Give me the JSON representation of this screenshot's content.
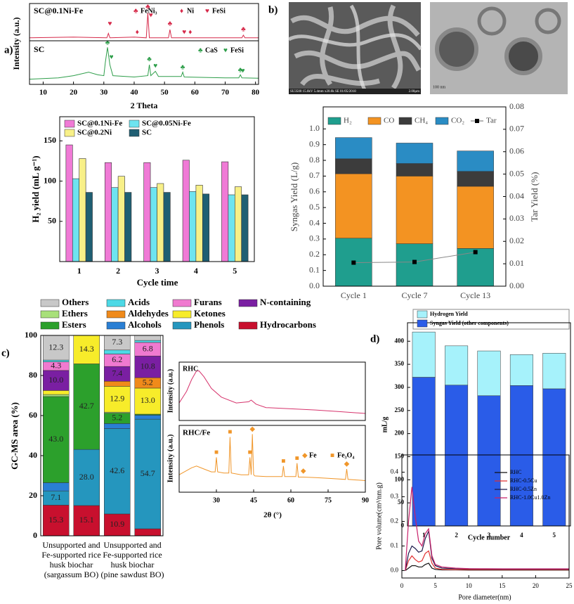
{
  "panel_labels": [
    "a)",
    "b)",
    "c)",
    "d)"
  ],
  "images": [
    {
      "caption": "SU3500 15.0kV 5.4mm x20.0k SE 01/05/2018",
      "scale": "2.00μm"
    },
    {
      "scale": "100 nm"
    }
  ],
  "chart_data": [
    {
      "type": "line",
      "title": "SC@0.1Ni-Fe",
      "ylabel": "Intensity (a.u.)",
      "xlim": [
        5.5,
        81
      ],
      "ylim": [
        0,
        1
      ],
      "x": [
        5.5,
        20,
        31,
        31.5,
        32,
        40,
        44,
        44.5,
        45,
        51.3,
        51.8,
        52.3,
        75.5,
        76,
        76.5,
        81
      ],
      "series": [
        {
          "color": "#d62a4a",
          "values": [
            0.08,
            0.1,
            0.08,
            0.2,
            0.08,
            0.1,
            0.08,
            0.75,
            0.08,
            0.08,
            0.3,
            0.08,
            0.08,
            0.15,
            0.08,
            0.08
          ]
        }
      ],
      "markers": [
        {
          "name": "FeNi₃",
          "symbol": "♣",
          "color": "#d62a4a",
          "x": [
            44.5,
            51.8,
            76
          ],
          "y": [
            0.9,
            0.45,
            0.3
          ]
        },
        {
          "name": "Ni",
          "symbol": "♦",
          "color": "#d62a4a",
          "x": [
            41,
            58.5
          ],
          "y": [
            0.22,
            0.22
          ]
        },
        {
          "name": "FeSi",
          "symbol": "♥",
          "color": "#d62a4a",
          "x": [
            32,
            45.5,
            56.5
          ],
          "y": [
            0.45,
            0.68,
            0.22
          ]
        }
      ]
    },
    {
      "type": "line",
      "title": "SC",
      "xlabel": "2 Theta",
      "xlim": [
        5.5,
        81
      ],
      "xticks": [
        10,
        20,
        30,
        40,
        50,
        60,
        70,
        80
      ],
      "ylim": [
        0,
        1
      ],
      "x": [
        5.5,
        15,
        20,
        25,
        28,
        30,
        30.5,
        31.2,
        32,
        33,
        40,
        44.5,
        45,
        45.5,
        47,
        48,
        55.5,
        56,
        56.5,
        70,
        74.5,
        75,
        75.5,
        81
      ],
      "series": [
        {
          "color": "#2e9e4a",
          "values": [
            0.12,
            0.15,
            0.2,
            0.28,
            0.22,
            0.2,
            0.5,
            0.85,
            0.45,
            0.2,
            0.17,
            0.2,
            0.45,
            0.2,
            0.3,
            0.18,
            0.18,
            0.28,
            0.17,
            0.15,
            0.15,
            0.22,
            0.15,
            0.14
          ]
        }
      ],
      "markers": [
        {
          "name": "CaS",
          "symbol": "♣",
          "color": "#2e9e4a",
          "x": [
            31.2,
            45,
            56,
            75
          ],
          "y": [
            0.95,
            0.57,
            0.38,
            0.32
          ]
        },
        {
          "name": "FeSi",
          "symbol": "♥",
          "color": "#2e9e4a",
          "x": [
            32.5,
            47,
            75.8
          ],
          "y": [
            0.62,
            0.42,
            0.3
          ]
        }
      ]
    },
    {
      "type": "bar",
      "xlabel": "Cycle time",
      "ylabel": "H₂ yield (mL g⁻¹)",
      "categories": [
        "1",
        "2",
        "3",
        "4",
        "5"
      ],
      "ylim": [
        0,
        180
      ],
      "yticks": [
        50,
        100,
        150
      ],
      "series": [
        {
          "name": "SC@0.1Ni-Fe",
          "color": "#f07ad6",
          "values": [
            145,
            123,
            123,
            126,
            124
          ]
        },
        {
          "name": "SC@0.05Ni-Fe",
          "color": "#6ee4f0",
          "values": [
            103,
            92,
            92,
            87,
            83
          ]
        },
        {
          "name": "SC@0.2Ni",
          "color": "#f8f088",
          "values": [
            128,
            106,
            97,
            95,
            93
          ]
        },
        {
          "name": "SC",
          "color": "#1f5f73",
          "values": [
            86,
            86,
            86,
            84,
            83
          ]
        }
      ]
    },
    {
      "type": "stacked_bar",
      "ylabel": "Syngas Yield (L/g)",
      "y2label": "Tar Yield (%)",
      "categories": [
        "Cycle 1",
        "Cycle 7",
        "Cycle 13"
      ],
      "ylim": [
        0,
        1.14
      ],
      "yticks": [
        {
          "value": 0,
          "label": "0.0"
        },
        0.1,
        0.2,
        0.3,
        0.4,
        0.5,
        0.6,
        0.7,
        0.8,
        0.9,
        {
          "value": 1,
          "label": "1.0"
        }
      ],
      "y2lim": [
        0,
        0.08
      ],
      "y2ticks": [
        {
          "value": 0,
          "label": "0.00"
        },
        {
          "value": 0.01,
          "label": "0.01"
        },
        {
          "value": 0.02,
          "label": "0.02"
        },
        {
          "value": 0.03,
          "label": "0.03"
        },
        {
          "value": 0.04,
          "label": "0.04"
        },
        {
          "value": 0.05,
          "label": "0.05"
        },
        {
          "value": 0.06,
          "label": "0.06"
        },
        {
          "value": 0.07,
          "label": "0.07"
        },
        {
          "value": 0.08,
          "label": "0.08"
        }
      ],
      "series": [
        {
          "name": "H₂",
          "color": "#1f9e8e",
          "values": [
            0.305,
            0.27,
            0.24
          ]
        },
        {
          "name": "CO",
          "color": "#f39322",
          "values": [
            0.41,
            0.43,
            0.395
          ]
        },
        {
          "name": "CH₄",
          "color": "#3c3c3c",
          "values": [
            0.095,
            0.08,
            0.095
          ]
        },
        {
          "name": "CO₂",
          "color": "#2a8cc4",
          "values": [
            0.135,
            0.13,
            0.13
          ]
        },
        {
          "name": "Tar",
          "color": "#000000",
          "axis": "y2",
          "values": [
            0.0105,
            0.0108,
            0.0152
          ]
        }
      ]
    },
    {
      "type": "stacked_bar",
      "ylabel": "GC-MS area (%)",
      "categories": [
        null,
        null,
        null,
        null
      ],
      "category_groups": [
        [
          "Unsupported and",
          "Fe-supported rice",
          "husk biochar",
          "(sargassum BO)"
        ],
        [
          "Unsupported and",
          "Fe-supported rice",
          "husk biochar",
          "(pine sawdust BO)"
        ]
      ],
      "ylim": [
        0,
        100
      ],
      "yticks": [
        0,
        20,
        40,
        60,
        80,
        100
      ],
      "series": [
        {
          "name": "Hydrocarbons",
          "color": "#c8102e",
          "values": [
            15.3,
            15.1,
            10.9,
            3.5
          ],
          "value_labels": [
            "15.3",
            "15.1",
            "10.9",
            null
          ]
        },
        {
          "name": "Phenols",
          "color": "#2596be",
          "values": [
            7.1,
            28.0,
            42.6,
            54.7
          ],
          "value_labels": [
            "7.1",
            "28.0",
            "42.6",
            "54.7"
          ]
        },
        {
          "name": "Alcohols",
          "color": "#2a7fd4",
          "values": [
            4.1,
            0,
            2.5,
            2
          ]
        },
        {
          "name": "Esters",
          "color": "#2ca02c",
          "values": [
            43.0,
            42.7,
            5.2,
            0.5
          ],
          "value_labels": [
            "43.0",
            "42.7",
            "5.2",
            null
          ]
        },
        {
          "name": "Ethers",
          "color": "#a8e07a",
          "values": [
            1.0,
            0,
            0.5,
            0
          ]
        },
        {
          "name": "Ketones",
          "color": "#f7ec2a",
          "values": [
            2.0,
            14.3,
            12.9,
            13.0
          ],
          "value_labels": [
            null,
            "14.3",
            "12.9",
            "13.0"
          ]
        },
        {
          "name": "Aldehydes",
          "color": "#f08a1a",
          "values": [
            0,
            0,
            2.5,
            5.2
          ],
          "value_labels": [
            null,
            null,
            null,
            "5.2"
          ]
        },
        {
          "name": "N-containing",
          "color": "#7a1fa2",
          "values": [
            10.0,
            0,
            7.4,
            10.8
          ],
          "value_labels": [
            "10.0",
            null,
            "7.4",
            "10.8"
          ]
        },
        {
          "name": "Furans",
          "color": "#f07ad0",
          "values": [
            4.3,
            0,
            6.2,
            6.8
          ],
          "value_labels": [
            "4.3",
            null,
            "6.2",
            "6.8"
          ]
        },
        {
          "name": "Acids",
          "color": "#4dd9e6",
          "values": [
            0.9,
            0,
            2.0,
            1.0
          ]
        },
        {
          "name": "Others",
          "color": "#c8c8c8",
          "values": [
            12.3,
            0,
            7.3,
            2.5
          ],
          "value_labels": [
            "12.3",
            null,
            "7.3",
            null
          ]
        }
      ]
    },
    {
      "type": "line",
      "title": "RHC",
      "ylabel": "Intensity (a.u.)",
      "xlim": [
        15,
        90
      ],
      "ylim": [
        0,
        1
      ],
      "x": [
        15,
        18,
        20,
        22,
        23,
        25,
        28,
        32,
        38,
        43,
        44,
        46,
        50,
        60,
        70,
        80,
        90
      ],
      "series": [
        {
          "color": "#d6336c",
          "values": [
            0.3,
            0.5,
            0.7,
            0.85,
            0.85,
            0.75,
            0.55,
            0.4,
            0.3,
            0.32,
            0.35,
            0.28,
            0.22,
            0.2,
            0.18,
            0.15,
            0.12
          ]
        }
      ]
    },
    {
      "type": "line",
      "title": "RHC/Fe",
      "ylabel": "Intensity (a.u.)",
      "xlabel": "2θ (°)",
      "xlim": [
        15,
        90
      ],
      "xticks": [
        30,
        45,
        60,
        75,
        90
      ],
      "ylim": [
        0,
        1.15
      ],
      "x": [
        15,
        20,
        22,
        25,
        28,
        29.5,
        30,
        30.5,
        33,
        35,
        35.5,
        36,
        40,
        43,
        43.5,
        44,
        44.5,
        45,
        45.5,
        50,
        56.5,
        57,
        57.5,
        62,
        62.5,
        63,
        65,
        70,
        75,
        82,
        82.5,
        83,
        90
      ],
      "series": [
        {
          "color": "#f0962a",
          "values": [
            0.3,
            0.42,
            0.45,
            0.4,
            0.35,
            0.35,
            0.6,
            0.35,
            0.33,
            0.33,
            0.95,
            0.33,
            0.3,
            0.3,
            0.6,
            0.3,
            1.0,
            0.3,
            0.28,
            0.27,
            0.27,
            0.45,
            0.27,
            0.27,
            0.5,
            0.26,
            0.26,
            0.25,
            0.24,
            0.22,
            0.4,
            0.22,
            0.2
          ]
        }
      ],
      "markers": [
        {
          "name": "Fe",
          "symbol": "◆",
          "color": "#f0962a",
          "x": [
            44.5,
            65,
            82.5
          ],
          "y": [
            1.08,
            0.36,
            0.48
          ]
        },
        {
          "name": "Fe₃O₄",
          "symbol": "■",
          "color": "#f0962a",
          "x": [
            30,
            35.5,
            43.5,
            57,
            62.5
          ],
          "y": [
            0.68,
            1.03,
            0.68,
            0.53,
            0.58
          ]
        }
      ]
    },
    {
      "type": "stacked_bar",
      "xlabel": "Cycle number",
      "ylabel": "mL/g",
      "categories": [
        "1",
        "2",
        "3",
        "4",
        "5"
      ],
      "ylim": [
        0,
        440
      ],
      "yticks": [
        0,
        50,
        100,
        150,
        200,
        250,
        300,
        350,
        400
      ],
      "series": [
        {
          "name": "Syngas Yield (other components)",
          "color": "#2a5ce8",
          "values": [
            322,
            305,
            282,
            304,
            297
          ]
        },
        {
          "name": "Hydrogen Yield",
          "color": "#a6f2fb",
          "values": [
            98,
            85,
            97,
            67,
            77
          ]
        }
      ]
    },
    {
      "type": "line",
      "xlabel": "Pore diameter(nm)",
      "ylabel": "Pore volume(cm³/nm.g)",
      "xlim": [
        0,
        25
      ],
      "xticks": [
        0,
        5,
        10,
        15,
        20,
        25
      ],
      "ylim": [
        -0.03,
        0.47
      ],
      "yticks": [
        {
          "value": 0,
          "label": "0.0"
        },
        0.1,
        0.2,
        0.3,
        0.4
      ],
      "x": [
        0.5,
        1,
        1.5,
        2,
        2.5,
        3,
        3.5,
        4,
        4.5,
        5,
        6,
        8,
        10,
        15,
        20,
        25
      ],
      "series": [
        {
          "name": "RHC",
          "color": "#111111",
          "values": [
            0,
            0.01,
            0.02,
            0.02,
            0.015,
            0.015,
            0.025,
            0.03,
            0.01,
            0.005,
            0.003,
            0.003,
            0.002,
            0.002,
            0.002,
            0.002
          ]
        },
        {
          "name": "RHC-0.5Cu",
          "color": "#e03030",
          "values": [
            0,
            0.04,
            0.06,
            0.045,
            0.035,
            0.04,
            0.07,
            0.08,
            0.03,
            0.01,
            0.005,
            0.004,
            0.004,
            0.004,
            0.004,
            0.004
          ]
        },
        {
          "name": "RHC-0.5Zn",
          "color": "#1a1a4a",
          "values": [
            0,
            0.07,
            0.1,
            0.09,
            0.075,
            0.08,
            0.13,
            0.16,
            0.05,
            0.02,
            0.01,
            0.008,
            0.007,
            0.006,
            0.006,
            0.006
          ]
        },
        {
          "name": "RHC-1.0Cu1.0Zn",
          "color": "#c8206a",
          "values": [
            0,
            0.2,
            0.34,
            0.22,
            0.12,
            0.1,
            0.15,
            0.17,
            0.06,
            0.025,
            0.015,
            0.01,
            0.008,
            0.007,
            0.007,
            0.007
          ]
        }
      ]
    }
  ]
}
